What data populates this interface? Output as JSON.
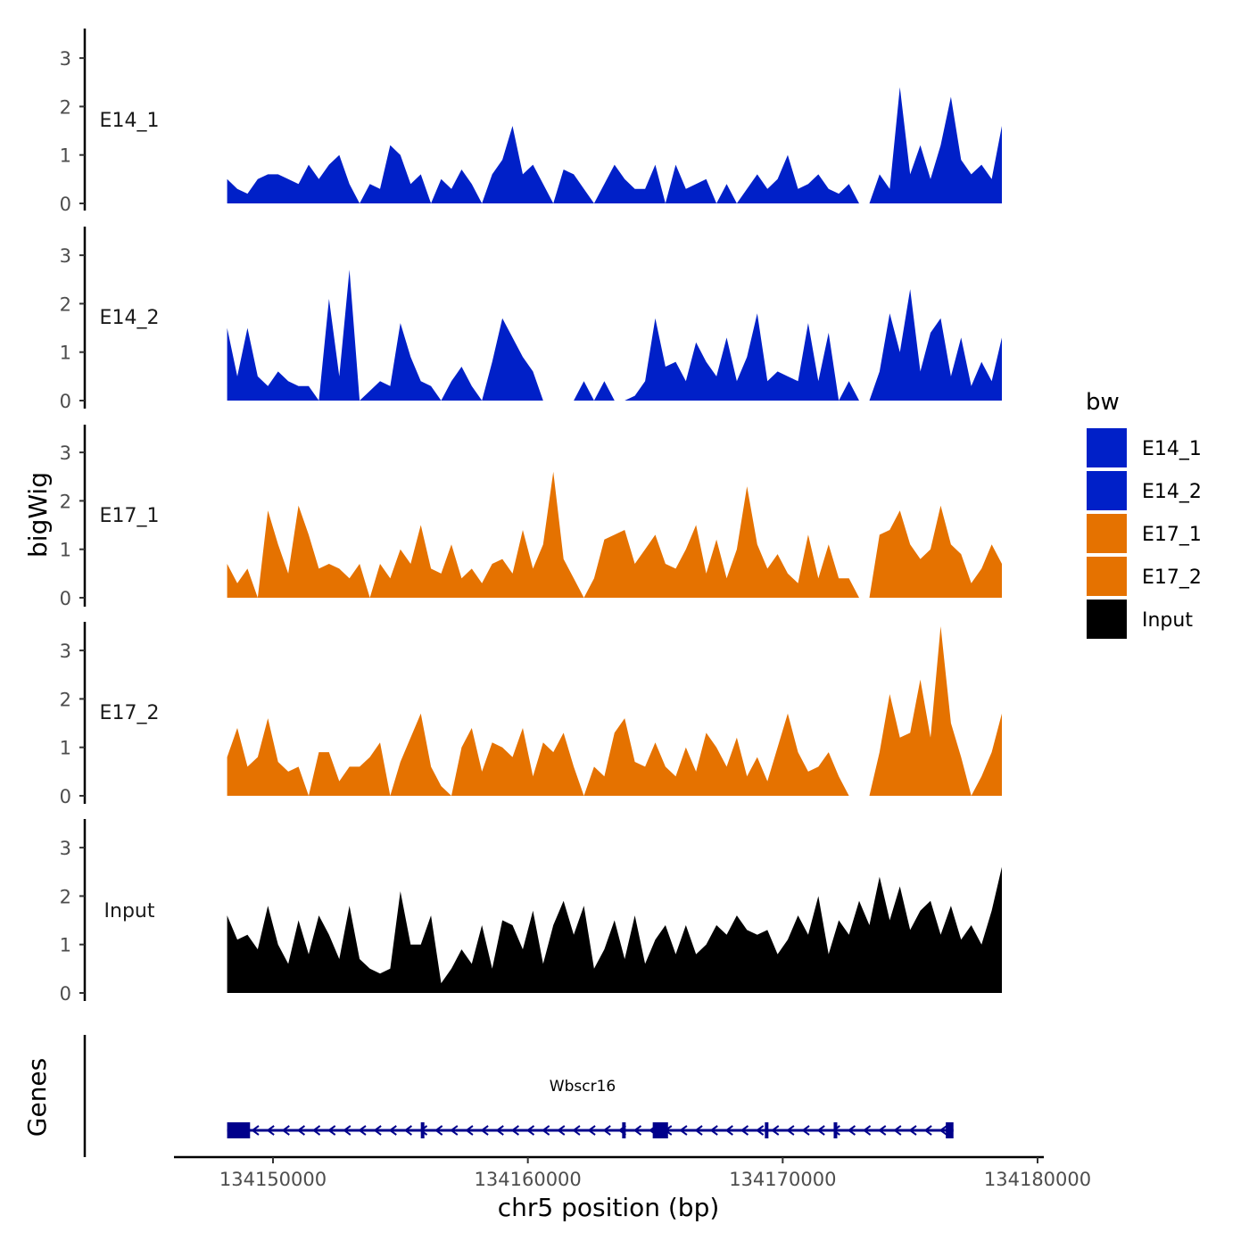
{
  "chart_data": {
    "type": "area",
    "figure": "genome coverage tracks",
    "xlabel": "chr5 position (bp)",
    "ylabel": "bigWig",
    "gene_track_label": "Genes",
    "xlim": [
      134141500,
      134179500
    ],
    "x_ticks": [
      134150000,
      134160000,
      134170000,
      134180000
    ],
    "x_tick_labels": [
      "134150000",
      "134160000",
      "134170000",
      "134180000"
    ],
    "ylim": [
      0,
      3.6
    ],
    "y_ticks": [
      0,
      1,
      2,
      3
    ],
    "y_tick_labels": [
      "0",
      "1",
      "2",
      "3"
    ],
    "legend": {
      "title": "bw",
      "placement": "right",
      "entries": [
        {
          "label": "E14_1",
          "color": "#0020C8"
        },
        {
          "label": "E14_2",
          "color": "#0020C8"
        },
        {
          "label": "E17_1",
          "color": "#E57200"
        },
        {
          "label": "E17_2",
          "color": "#E57200"
        },
        {
          "label": "Input",
          "color": "#000000"
        }
      ]
    },
    "series": [
      {
        "name": "E14_1",
        "color": "#0020C8",
        "x": [
          134148200,
          134148600,
          134149000,
          134149400,
          134149800,
          134150200,
          134150600,
          134151000,
          134151400,
          134151800,
          134152200,
          134152600,
          134153000,
          134153400,
          134153800,
          134154200,
          134154600,
          134155000,
          134155400,
          134155800,
          134156200,
          134156600,
          134157000,
          134157400,
          134157800,
          134158200,
          134158600,
          134159000,
          134159400,
          134159800,
          134160200,
          134160600,
          134161000,
          134161400,
          134161800,
          134162200,
          134162600,
          134163000,
          134163400,
          134163800,
          134164200,
          134164600,
          134165000,
          134165400,
          134165800,
          134166200,
          134166600,
          134167000,
          134167400,
          134167800,
          134168200,
          134168600,
          134169000,
          134169400,
          134169800,
          134170200,
          134170600,
          134171000,
          134171400,
          134171800,
          134172200,
          134172600,
          134173000,
          134173400,
          134173800,
          134174200,
          134174600,
          134175000,
          134175400,
          134175800,
          134176200,
          134176600,
          134177000,
          134177400,
          134177800,
          134178200,
          134178600
        ],
        "y": [
          0.5,
          0.3,
          0.2,
          0.5,
          0.6,
          0.6,
          0.5,
          0.4,
          0.8,
          0.5,
          0.8,
          1.0,
          0.4,
          0.0,
          0.4,
          0.3,
          1.2,
          1.0,
          0.4,
          0.6,
          0.0,
          0.5,
          0.3,
          0.7,
          0.4,
          0.0,
          0.6,
          0.9,
          1.6,
          0.6,
          0.8,
          0.4,
          0.0,
          0.7,
          0.6,
          0.3,
          0.0,
          0.4,
          0.8,
          0.5,
          0.3,
          0.3,
          0.8,
          0.0,
          0.8,
          0.3,
          0.4,
          0.5,
          0.0,
          0.4,
          0.0,
          0.3,
          0.6,
          0.3,
          0.5,
          1.0,
          0.3,
          0.4,
          0.6,
          0.3,
          0.2,
          0.4,
          0.0,
          0.0,
          0.6,
          0.3,
          2.4,
          0.6,
          1.2,
          0.5,
          1.2,
          2.2,
          0.9,
          0.6,
          0.8,
          0.5,
          1.6
        ]
      },
      {
        "name": "E14_2",
        "color": "#0020C8",
        "x": [
          134148200,
          134148600,
          134149000,
          134149400,
          134149800,
          134150200,
          134150600,
          134151000,
          134151400,
          134151800,
          134152200,
          134152600,
          134153000,
          134153400,
          134153800,
          134154200,
          134154600,
          134155000,
          134155400,
          134155800,
          134156200,
          134156600,
          134157000,
          134157400,
          134157800,
          134158200,
          134158600,
          134159000,
          134159400,
          134159800,
          134160200,
          134160600,
          134161000,
          134161400,
          134161800,
          134162200,
          134162600,
          134163000,
          134163400,
          134163800,
          134164200,
          134164600,
          134165000,
          134165400,
          134165800,
          134166200,
          134166600,
          134167000,
          134167400,
          134167800,
          134168200,
          134168600,
          134169000,
          134169400,
          134169800,
          134170200,
          134170600,
          134171000,
          134171400,
          134171800,
          134172200,
          134172600,
          134173000,
          134173400,
          134173800,
          134174200,
          134174600,
          134175000,
          134175400,
          134175800,
          134176200,
          134176600,
          134177000,
          134177400,
          134177800,
          134178200,
          134178600
        ],
        "y": [
          1.5,
          0.5,
          1.5,
          0.5,
          0.3,
          0.6,
          0.4,
          0.3,
          0.3,
          0.0,
          2.1,
          0.5,
          2.7,
          0.0,
          0.2,
          0.4,
          0.3,
          1.6,
          0.9,
          0.4,
          0.3,
          0.0,
          0.4,
          0.7,
          0.3,
          0.0,
          0.8,
          1.7,
          1.3,
          0.9,
          0.6,
          0.0,
          0.0,
          0.0,
          0.0,
          0.4,
          0.0,
          0.4,
          0.0,
          0.0,
          0.1,
          0.4,
          1.7,
          0.7,
          0.8,
          0.4,
          1.2,
          0.8,
          0.5,
          1.3,
          0.4,
          0.9,
          1.8,
          0.4,
          0.6,
          0.5,
          0.4,
          1.6,
          0.4,
          1.4,
          0.0,
          0.4,
          0.0,
          0.0,
          0.6,
          1.8,
          1.0,
          2.3,
          0.6,
          1.4,
          1.7,
          0.5,
          1.3,
          0.3,
          0.8,
          0.4,
          1.3
        ]
      },
      {
        "name": "E17_1",
        "color": "#E57200",
        "x": [
          134148200,
          134148600,
          134149000,
          134149400,
          134149800,
          134150200,
          134150600,
          134151000,
          134151400,
          134151800,
          134152200,
          134152600,
          134153000,
          134153400,
          134153800,
          134154200,
          134154600,
          134155000,
          134155400,
          134155800,
          134156200,
          134156600,
          134157000,
          134157400,
          134157800,
          134158200,
          134158600,
          134159000,
          134159400,
          134159800,
          134160200,
          134160600,
          134161000,
          134161400,
          134161800,
          134162200,
          134162600,
          134163000,
          134163400,
          134163800,
          134164200,
          134164600,
          134165000,
          134165400,
          134165800,
          134166200,
          134166600,
          134167000,
          134167400,
          134167800,
          134168200,
          134168600,
          134169000,
          134169400,
          134169800,
          134170200,
          134170600,
          134171000,
          134171400,
          134171800,
          134172200,
          134172600,
          134173000,
          134173400,
          134173800,
          134174200,
          134174600,
          134175000,
          134175400,
          134175800,
          134176200,
          134176600,
          134177000,
          134177400,
          134177800,
          134178200,
          134178600
        ],
        "y": [
          0.7,
          0.3,
          0.6,
          0.0,
          1.8,
          1.1,
          0.5,
          1.9,
          1.3,
          0.6,
          0.7,
          0.6,
          0.4,
          0.7,
          0.0,
          0.7,
          0.4,
          1.0,
          0.7,
          1.5,
          0.6,
          0.5,
          1.1,
          0.4,
          0.6,
          0.3,
          0.7,
          0.8,
          0.5,
          1.4,
          0.6,
          1.1,
          2.6,
          0.8,
          0.4,
          0.0,
          0.4,
          1.2,
          1.3,
          1.4,
          0.7,
          1.0,
          1.3,
          0.7,
          0.6,
          1.0,
          1.5,
          0.5,
          1.2,
          0.4,
          1.0,
          2.3,
          1.1,
          0.6,
          0.9,
          0.5,
          0.3,
          1.3,
          0.4,
          1.1,
          0.4,
          0.4,
          0.0,
          0.0,
          1.3,
          1.4,
          1.8,
          1.1,
          0.8,
          1.0,
          1.9,
          1.1,
          0.9,
          0.3,
          0.6,
          1.1,
          0.7
        ]
      },
      {
        "name": "E17_2",
        "color": "#E57200",
        "x": [
          134148200,
          134148600,
          134149000,
          134149400,
          134149800,
          134150200,
          134150600,
          134151000,
          134151400,
          134151800,
          134152200,
          134152600,
          134153000,
          134153400,
          134153800,
          134154200,
          134154600,
          134155000,
          134155400,
          134155800,
          134156200,
          134156600,
          134157000,
          134157400,
          134157800,
          134158200,
          134158600,
          134159000,
          134159400,
          134159800,
          134160200,
          134160600,
          134161000,
          134161400,
          134161800,
          134162200,
          134162600,
          134163000,
          134163400,
          134163800,
          134164200,
          134164600,
          134165000,
          134165400,
          134165800,
          134166200,
          134166600,
          134167000,
          134167400,
          134167800,
          134168200,
          134168600,
          134169000,
          134169400,
          134169800,
          134170200,
          134170600,
          134171000,
          134171400,
          134171800,
          134172200,
          134172600,
          134173000,
          134173400,
          134173800,
          134174200,
          134174600,
          134175000,
          134175400,
          134175800,
          134176200,
          134176600,
          134177000,
          134177400,
          134177800,
          134178200,
          134178600
        ],
        "y": [
          0.8,
          1.4,
          0.6,
          0.8,
          1.6,
          0.7,
          0.5,
          0.6,
          0.0,
          0.9,
          0.9,
          0.3,
          0.6,
          0.6,
          0.8,
          1.1,
          0.0,
          0.7,
          1.2,
          1.7,
          0.6,
          0.2,
          0.0,
          1.0,
          1.4,
          0.5,
          1.1,
          1.0,
          0.8,
          1.4,
          0.4,
          1.1,
          0.9,
          1.3,
          0.6,
          0.0,
          0.6,
          0.4,
          1.3,
          1.6,
          0.7,
          0.6,
          1.1,
          0.6,
          0.4,
          1.0,
          0.5,
          1.3,
          1.0,
          0.6,
          1.2,
          0.4,
          0.8,
          0.3,
          1.0,
          1.7,
          0.9,
          0.5,
          0.6,
          0.9,
          0.4,
          0.0,
          0.0,
          0.0,
          0.9,
          2.1,
          1.2,
          1.3,
          2.4,
          1.2,
          3.5,
          1.5,
          0.8,
          0.0,
          0.4,
          0.9,
          1.7
        ]
      },
      {
        "name": "Input",
        "color": "#000000",
        "x": [
          134148200,
          134148600,
          134149000,
          134149400,
          134149800,
          134150200,
          134150600,
          134151000,
          134151400,
          134151800,
          134152200,
          134152600,
          134153000,
          134153400,
          134153800,
          134154200,
          134154600,
          134155000,
          134155400,
          134155800,
          134156200,
          134156600,
          134157000,
          134157400,
          134157800,
          134158200,
          134158600,
          134159000,
          134159400,
          134159800,
          134160200,
          134160600,
          134161000,
          134161400,
          134161800,
          134162200,
          134162600,
          134163000,
          134163400,
          134163800,
          134164200,
          134164600,
          134165000,
          134165400,
          134165800,
          134166200,
          134166600,
          134167000,
          134167400,
          134167800,
          134168200,
          134168600,
          134169000,
          134169400,
          134169800,
          134170200,
          134170600,
          134171000,
          134171400,
          134171800,
          134172200,
          134172600,
          134173000,
          134173400,
          134173800,
          134174200,
          134174600,
          134175000,
          134175400,
          134175800,
          134176200,
          134176600,
          134177000,
          134177400,
          134177800,
          134178200,
          134178600
        ],
        "y": [
          1.6,
          1.1,
          1.2,
          0.9,
          1.8,
          1.0,
          0.6,
          1.5,
          0.8,
          1.6,
          1.2,
          0.7,
          1.8,
          0.7,
          0.5,
          0.4,
          0.5,
          2.1,
          1.0,
          1.0,
          1.6,
          0.2,
          0.5,
          0.9,
          0.6,
          1.4,
          0.5,
          1.5,
          1.4,
          0.9,
          1.7,
          0.6,
          1.4,
          1.9,
          1.2,
          1.8,
          0.5,
          0.9,
          1.5,
          0.7,
          1.6,
          0.6,
          1.1,
          1.4,
          0.8,
          1.4,
          0.8,
          1.0,
          1.4,
          1.2,
          1.6,
          1.3,
          1.2,
          1.3,
          0.8,
          1.1,
          1.6,
          1.2,
          2.0,
          0.8,
          1.5,
          1.2,
          1.9,
          1.4,
          2.4,
          1.5,
          2.2,
          1.3,
          1.7,
          1.9,
          1.2,
          1.8,
          1.1,
          1.4,
          1.0,
          1.7,
          2.6
        ]
      }
    ],
    "genes": [
      {
        "name": "Wbscr16",
        "start": 134148200,
        "end": 134176700,
        "strand": "-",
        "exons": [
          [
            134148200,
            134149100
          ],
          [
            134155800,
            134155900
          ],
          [
            134163700,
            134163800
          ],
          [
            134164900,
            134165500
          ],
          [
            134169300,
            134169400
          ],
          [
            134172000,
            134172100
          ],
          [
            134176400,
            134176700
          ]
        ]
      }
    ]
  }
}
